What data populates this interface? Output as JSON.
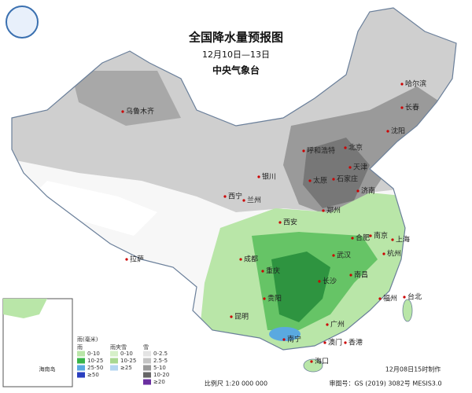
{
  "header": {
    "title": "全国降水量预报图",
    "subtitle": "12月10日—13日",
    "agency": "中央气象台"
  },
  "cities": [
    "乌鲁木齐",
    "哈尔滨",
    "长春",
    "沈阳",
    "北京",
    "天津",
    "呼和浩特",
    "银川",
    "太原",
    "石家庄",
    "济南",
    "西宁",
    "兰州",
    "郑州",
    "西安",
    "合肥",
    "南京",
    "上海",
    "成都",
    "武汉",
    "杭州",
    "重庆",
    "长沙",
    "南昌",
    "贵阳",
    "福州",
    "昆明",
    "台北",
    "南宁",
    "广州",
    "澳门",
    "香港",
    "海口",
    "拉萨"
  ],
  "inset": {
    "label": "海南岛"
  },
  "legend": {
    "unit": "雨(毫米)",
    "rain": {
      "title": "雨",
      "items": [
        "0-10",
        "10-25",
        "25-50",
        "≥50"
      ]
    },
    "sleet": {
      "title": "雨夹雪",
      "items": [
        "0-10",
        "10-25",
        "≥25"
      ]
    },
    "snow": {
      "title": "雪",
      "items": [
        "0-2.5",
        "2.5-5",
        "5-10",
        "10-20",
        "≥20"
      ]
    }
  },
  "footer": {
    "scale": "比例尺 1:20 000 000",
    "approval": "审图号：GS (2019) 3082号 MESIS3.0",
    "made": "12月08日15时制作"
  }
}
